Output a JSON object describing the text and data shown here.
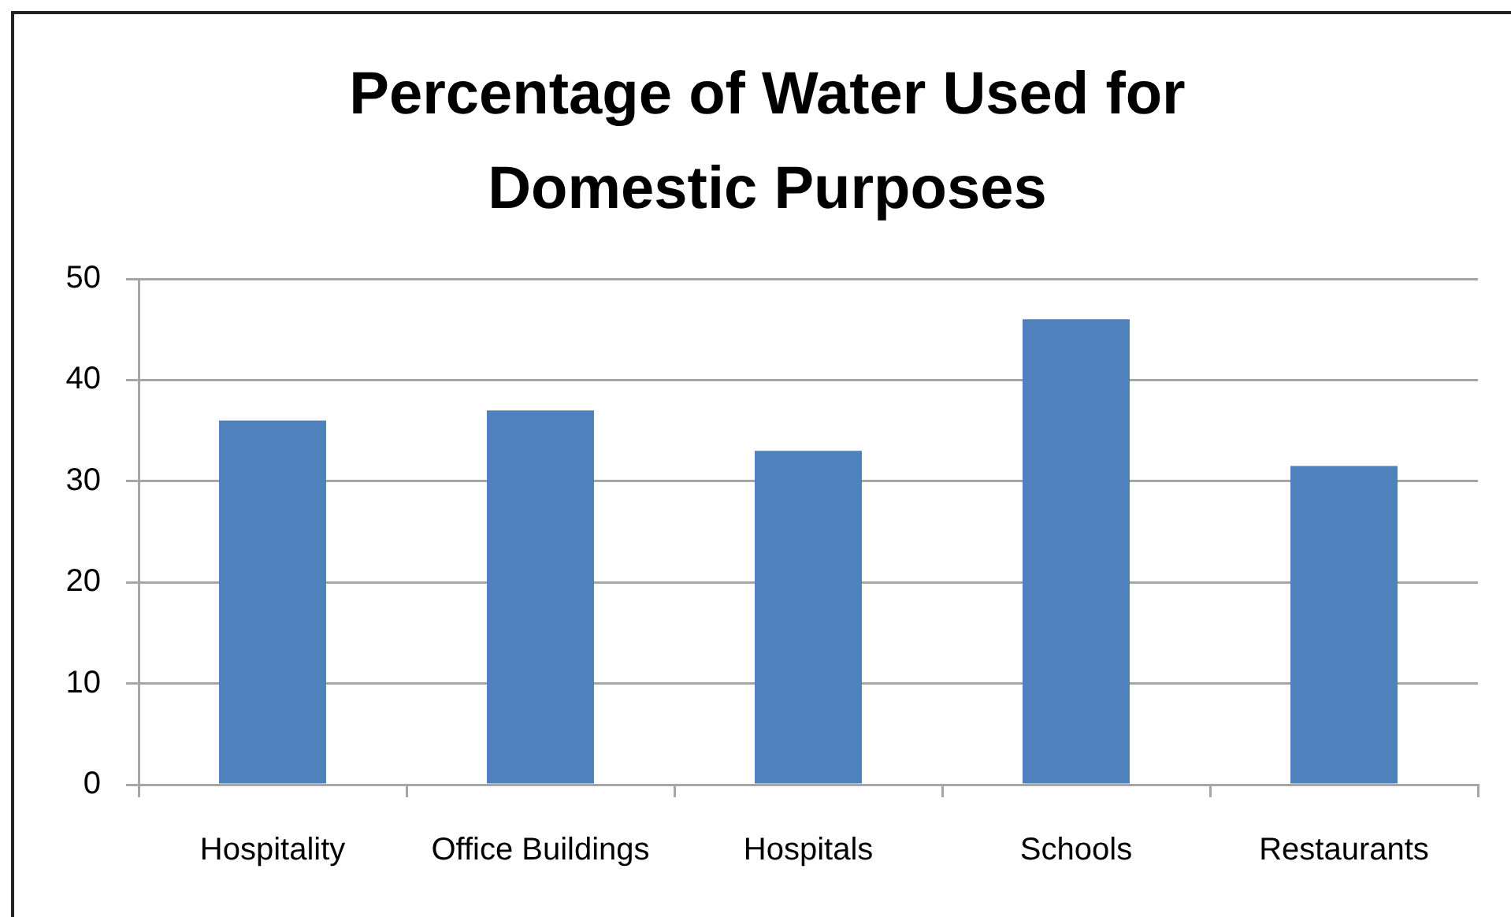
{
  "chart_data": {
    "type": "bar",
    "title": "Percentage of Water Used for Domestic Purposes",
    "categories": [
      "Hospitality",
      "Office Buildings",
      "Hospitals",
      "Schools",
      "Restaurants"
    ],
    "values": [
      36,
      37,
      33,
      46,
      31.5
    ],
    "color": "#4f81bd",
    "ylim": [
      0,
      50
    ],
    "yticks": [
      0,
      10,
      20,
      30,
      40,
      50
    ],
    "grid": "y"
  }
}
